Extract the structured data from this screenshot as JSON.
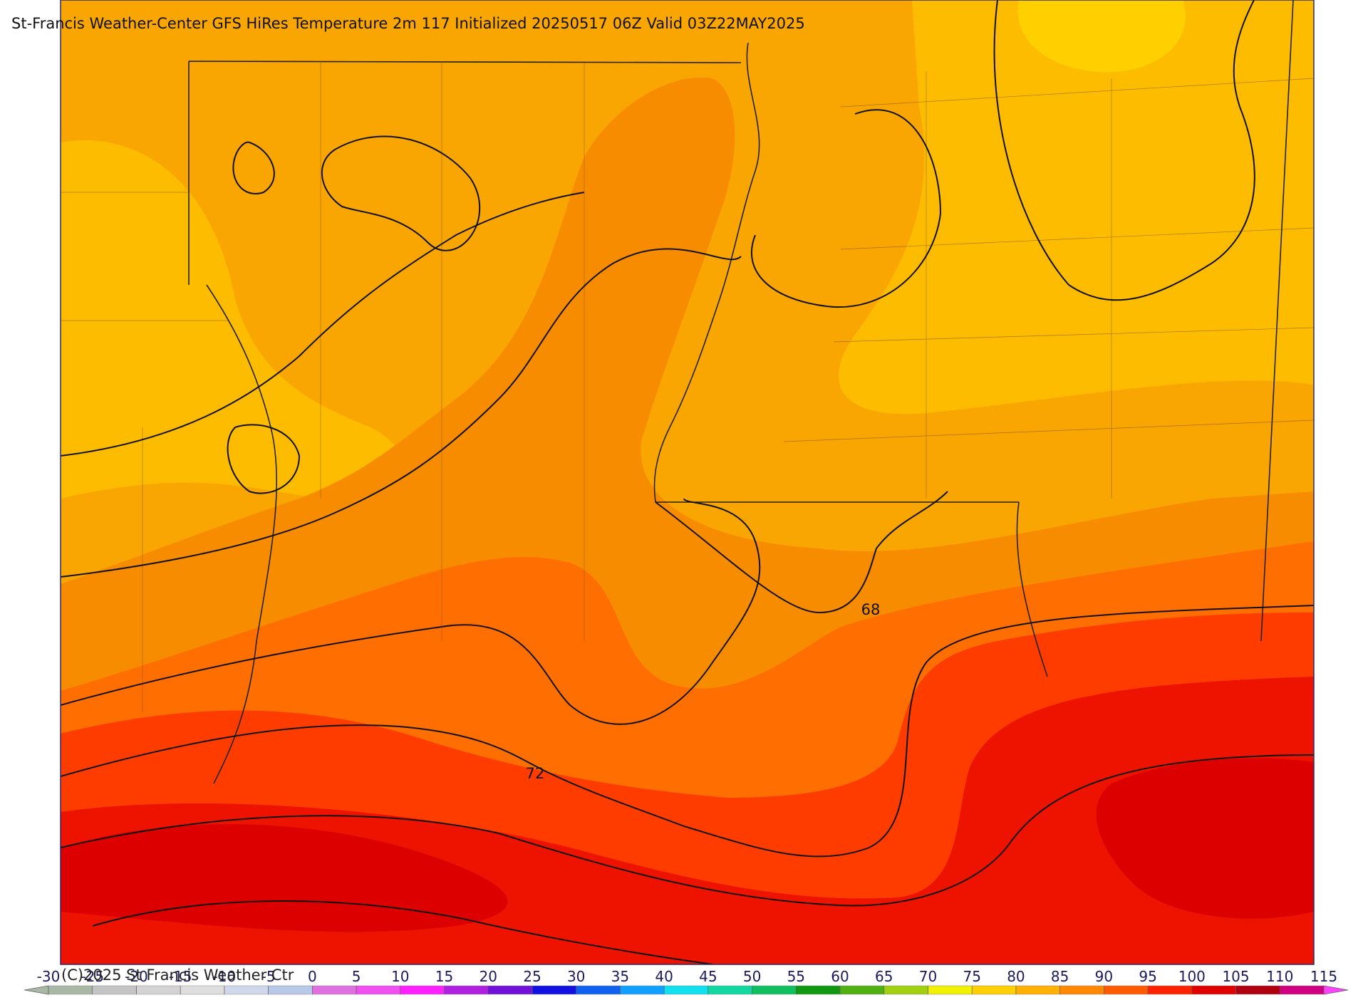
{
  "header": {
    "title": "St-Francis Weather-Center GFS HiRes Temperature 2m  117 Initialized 20250517 06Z Valid 03Z22MAY2025"
  },
  "footer": {
    "copyright": "(C)2025 St Francis Weather Ctr"
  },
  "contour_labels": [
    "68",
    "72"
  ],
  "colorbar": {
    "ticks": [
      -30,
      -25,
      -20,
      -15,
      -10,
      -5,
      0,
      5,
      10,
      15,
      20,
      25,
      30,
      35,
      40,
      45,
      50,
      55,
      60,
      65,
      70,
      75,
      80,
      85,
      90,
      95,
      100,
      105,
      110,
      115
    ],
    "colors": [
      "#a9b8a4",
      "#c4c4c4",
      "#d3d3d3",
      "#dedede",
      "#cfd8ea",
      "#b8c8e8",
      "#e070e0",
      "#f050f0",
      "#ff20ff",
      "#b020e0",
      "#7010d8",
      "#1010e0",
      "#1060f0",
      "#10a0ff",
      "#10e0f0",
      "#10d8a0",
      "#10c060",
      "#109810",
      "#50b010",
      "#a0d010",
      "#f0f000",
      "#ffd000",
      "#ffb000",
      "#ff8800",
      "#ff5a00",
      "#ff2200",
      "#e00000",
      "#b00010",
      "#d00080",
      "#ff40ff"
    ]
  }
}
